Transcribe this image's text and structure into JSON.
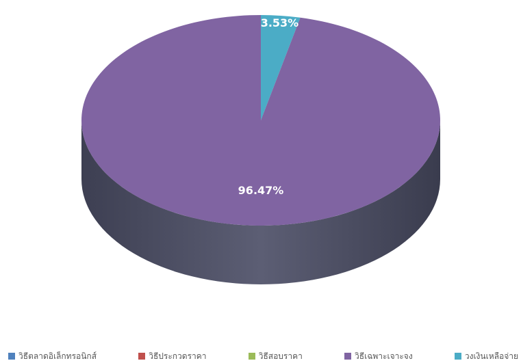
{
  "chart_data": {
    "type": "pie",
    "title": "",
    "categories": [
      "วิธีตลาดอิเล็กทรอนิกส์",
      "วิธีประกวดราคา",
      "วิธีสอบราคา",
      "วิธีเฉพาะเจาะจง",
      "วงเงินเหลือจ่าย"
    ],
    "values": [
      0,
      0,
      0,
      96.47,
      3.53
    ],
    "value_labels": [
      "",
      "",
      "",
      "96.47%",
      "3.53%"
    ],
    "colors": [
      "#4f81bd",
      "#c0504d",
      "#9bbb59",
      "#8064a2",
      "#4bacc6"
    ],
    "legend_position": "bottom",
    "style": "3d"
  }
}
